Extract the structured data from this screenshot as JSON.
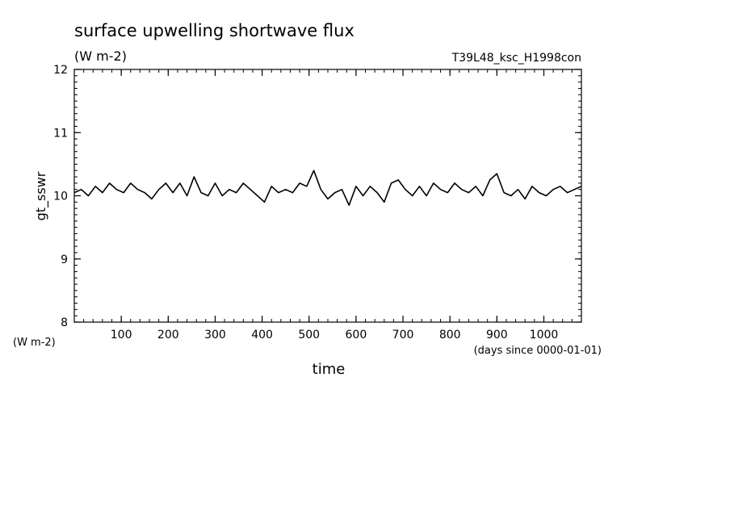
{
  "chart_data": {
    "type": "line",
    "title": "surface upwelling shortwave flux",
    "units": "(W m-2)",
    "experiment": "T39L48_ksc_H1998con",
    "ylabel": "gt_sswr",
    "yunits": "(W m-2)",
    "xlabel": "time",
    "xunits": "(days since 0000-01-01)",
    "xlim": [
      0,
      1080
    ],
    "ylim": [
      8,
      12
    ],
    "xticks": [
      100,
      200,
      300,
      400,
      500,
      600,
      700,
      800,
      900,
      1000
    ],
    "yticks": [
      8,
      9,
      10,
      11,
      12
    ],
    "grid": false,
    "series": [
      {
        "x": [
          0,
          15,
          30,
          45,
          60,
          75,
          90,
          105,
          120,
          135,
          150,
          165,
          180,
          195,
          210,
          225,
          240,
          255,
          270,
          285,
          300,
          315,
          330,
          345,
          360,
          375,
          390,
          405,
          420,
          435,
          450,
          465,
          480,
          495,
          510,
          525,
          540,
          555,
          570,
          585,
          600,
          615,
          630,
          645,
          660,
          675,
          690,
          705,
          720,
          735,
          750,
          765,
          780,
          795,
          810,
          825,
          840,
          855,
          870,
          885,
          900,
          915,
          930,
          945,
          960,
          975,
          990,
          1005,
          1020,
          1035,
          1050,
          1065,
          1080
        ],
        "y": [
          10.05,
          10.1,
          10.0,
          10.15,
          10.05,
          10.2,
          10.1,
          10.05,
          10.2,
          10.1,
          10.05,
          9.95,
          10.1,
          10.2,
          10.05,
          10.2,
          10.0,
          10.3,
          10.05,
          10.0,
          10.2,
          10.0,
          10.1,
          10.05,
          10.2,
          10.1,
          10.0,
          9.9,
          10.15,
          10.05,
          10.1,
          10.05,
          10.2,
          10.15,
          10.4,
          10.1,
          9.95,
          10.05,
          10.1,
          9.85,
          10.15,
          10.0,
          10.15,
          10.05,
          9.9,
          10.2,
          10.25,
          10.1,
          10.0,
          10.15,
          10.0,
          10.2,
          10.1,
          10.05,
          10.2,
          10.1,
          10.05,
          10.15,
          10.0,
          10.25,
          10.35,
          10.05,
          10.0,
          10.1,
          9.95,
          10.15,
          10.05,
          10.0,
          10.1,
          10.15,
          10.05,
          10.1,
          10.15
        ]
      }
    ]
  }
}
